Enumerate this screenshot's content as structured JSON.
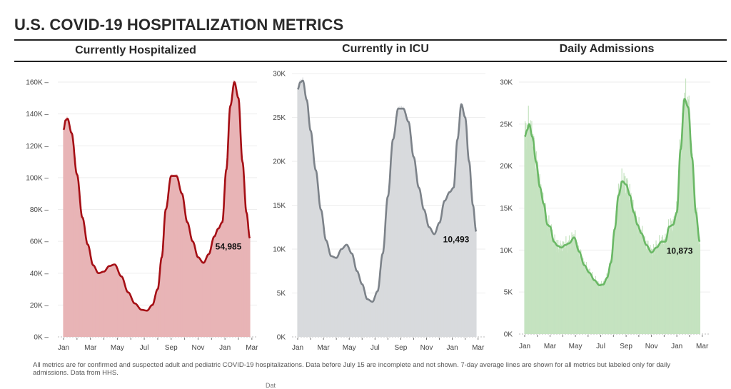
{
  "page": {
    "title": "U.S. COVID-19 HOSPITALIZATION METRICS",
    "footnote": "All metrics are for confirmed and suspected adult and pediatric COVID-19 hospitalizations. Data before July 15 are incomplete and not shown. 7-day average lines are shown for all metrics but labeled only for daily admissions. Data from HHS.",
    "clipped_fragment": "Dat"
  },
  "chart_data": [
    {
      "type": "area",
      "title": "Currently Hospitalized",
      "xlabel": "",
      "ylabel": "",
      "x_tick_labels": [
        "Jan",
        "Mar",
        "May",
        "Jul",
        "Sep",
        "Nov",
        "Jan",
        "Mar"
      ],
      "y_tick_labels": [
        "0K",
        "20K",
        "40K",
        "60K",
        "80K",
        "100K",
        "120K",
        "140K",
        "160K"
      ],
      "y_ticks": [
        0,
        20000,
        40000,
        60000,
        80000,
        100000,
        120000,
        140000,
        160000
      ],
      "ylim": [
        0,
        160000
      ],
      "x_range_months": [
        0,
        14
      ],
      "grid": true,
      "colors": {
        "bar": "#e8b4b6",
        "line": "#a50f15"
      },
      "series": [
        {
          "name": "7-day average",
          "x_months": [
            0,
            0.15,
            0.3,
            0.6,
            1.0,
            1.4,
            1.8,
            2.2,
            2.6,
            3.0,
            3.4,
            3.8,
            4.3,
            4.8,
            5.3,
            5.8,
            6.2,
            6.6,
            7.0,
            7.3,
            7.6,
            8.0,
            8.4,
            8.8,
            9.2,
            9.6,
            10.0,
            10.4,
            10.8,
            11.2,
            11.5,
            11.8,
            12.1,
            12.4,
            12.7,
            13.0,
            13.3,
            13.6,
            13.85
          ],
          "values": [
            130000,
            136000,
            137000,
            128000,
            102000,
            75000,
            58000,
            45000,
            40000,
            41000,
            44500,
            45500,
            38000,
            28000,
            21000,
            17000,
            16500,
            20000,
            30000,
            50000,
            80000,
            101000,
            101000,
            90000,
            72000,
            60000,
            50000,
            46500,
            52000,
            63000,
            68000,
            72000,
            105000,
            145000,
            160000,
            150000,
            110000,
            78000,
            62000
          ]
        }
      ],
      "last_value_label": "54,985"
    },
    {
      "type": "area",
      "title": "Currently in ICU",
      "xlabel": "",
      "ylabel": "",
      "x_tick_labels": [
        "Jan",
        "Mar",
        "May",
        "Jul",
        "Sep",
        "Nov",
        "Jan",
        "Mar"
      ],
      "y_tick_labels": [
        "0K",
        "5K",
        "10K",
        "15K",
        "20K",
        "25K",
        "30K"
      ],
      "y_ticks": [
        0,
        5000,
        10000,
        15000,
        20000,
        25000,
        30000
      ],
      "ylim": [
        0,
        30000
      ],
      "x_range_months": [
        0,
        14
      ],
      "grid": true,
      "colors": {
        "bar": "#d8dadd",
        "line": "#7c8289"
      },
      "series": [
        {
          "name": "7-day average",
          "x_months": [
            0,
            0.2,
            0.4,
            0.7,
            1.0,
            1.4,
            1.8,
            2.2,
            2.6,
            3.0,
            3.4,
            3.8,
            4.2,
            4.6,
            5.0,
            5.4,
            5.8,
            6.2,
            6.6,
            7.0,
            7.4,
            7.8,
            8.2,
            8.6,
            9.0,
            9.4,
            9.8,
            10.2,
            10.6,
            11.0,
            11.4,
            11.8,
            12.1,
            12.4,
            12.7,
            13.0,
            13.3,
            13.6,
            13.85
          ],
          "values": [
            28200,
            29000,
            29200,
            27000,
            23500,
            19000,
            14500,
            11000,
            9200,
            9000,
            10000,
            10500,
            9500,
            7500,
            6000,
            4300,
            4000,
            5200,
            9500,
            16000,
            22500,
            26000,
            26000,
            24500,
            20500,
            17000,
            14500,
            12500,
            11700,
            13000,
            15500,
            16500,
            17000,
            22500,
            26500,
            25000,
            20000,
            15000,
            12000
          ]
        }
      ],
      "last_value_label": "10,493"
    },
    {
      "type": "area",
      "title": "Daily Admissions",
      "xlabel": "",
      "ylabel": "",
      "x_tick_labels": [
        "Jan",
        "Mar",
        "May",
        "Jul",
        "Sep",
        "Nov",
        "Jan",
        "Mar"
      ],
      "y_tick_labels": [
        "0K",
        "5K",
        "10K",
        "15K",
        "20K",
        "25K",
        "30K"
      ],
      "y_ticks": [
        0,
        5000,
        10000,
        15000,
        20000,
        25000,
        30000
      ],
      "ylim": [
        0,
        30000
      ],
      "x_range_months": [
        0,
        14
      ],
      "grid": true,
      "colors": {
        "bar": "#c5e3c0",
        "line": "#6ab865"
      },
      "series": [
        {
          "name": "7-day average",
          "x_months": [
            0,
            0.2,
            0.35,
            0.6,
            0.9,
            1.2,
            1.5,
            1.8,
            2.0,
            2.3,
            2.6,
            2.9,
            3.2,
            3.5,
            3.9,
            4.3,
            4.7,
            5.1,
            5.5,
            5.9,
            6.2,
            6.5,
            6.8,
            7.1,
            7.4,
            7.7,
            8.0,
            8.3,
            8.6,
            8.9,
            9.2,
            9.6,
            10.0,
            10.4,
            10.8,
            11.1,
            11.4,
            11.7,
            12.0,
            12.3,
            12.6,
            12.9,
            13.2,
            13.5,
            13.8
          ],
          "values": [
            23500,
            24300,
            25000,
            23500,
            20500,
            17500,
            15500,
            13000,
            12800,
            11000,
            10500,
            10300,
            10600,
            10800,
            11500,
            9800,
            8200,
            7300,
            6400,
            5800,
            5900,
            6700,
            8500,
            12500,
            16500,
            18200,
            17800,
            16500,
            14500,
            13000,
            12000,
            10600,
            9700,
            10300,
            11000,
            11000,
            12800,
            13000,
            14500,
            22000,
            28000,
            27000,
            21000,
            14500,
            11000
          ]
        }
      ],
      "last_value_label": "10,873"
    }
  ]
}
